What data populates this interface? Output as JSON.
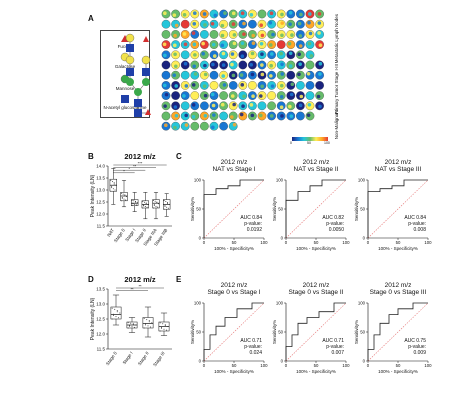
{
  "panels": {
    "A": "A",
    "B": "B",
    "C": "C",
    "D": "D",
    "E": "E"
  },
  "glycan_legend": {
    "items": [
      {
        "name": "Fucose",
        "shape": "red-triangle",
        "color": "#d32f2f"
      },
      {
        "name": "Galactose",
        "shape": "yellow-circle",
        "color": "#f2e24a"
      },
      {
        "name": "Mannose",
        "shape": "green-circle",
        "color": "#3aa84a"
      },
      {
        "name": "N-acetyl glucosamine",
        "shape": "blue-square",
        "color": "#1f3fa8"
      }
    ]
  },
  "tma": {
    "side_labels": [
      "Metastatic Lymph Nodes",
      "Primary Tumor Stage I-III",
      "Non-Malignant"
    ],
    "scale_ticks": [
      "0",
      "50",
      "100"
    ],
    "colormap": [
      "#1a237e",
      "#1976d2",
      "#26c6da",
      "#66bb6a",
      "#ffee58",
      "#ffa726",
      "#e53935"
    ]
  },
  "panel_B": {
    "title": "2012 m/z",
    "ylabel": "Peak Intensity (LN)",
    "sig_labels": [
      "***",
      "**",
      "*",
      "*"
    ],
    "chart_data": {
      "type": "box",
      "categories": [
        "NAT",
        "Stage 0",
        "Stage I",
        "Stage II",
        "Stage IIIA",
        "Stage IIIB"
      ],
      "ylim": [
        11.5,
        14.0
      ],
      "yticks": [
        "11.5",
        "12.0",
        "12.5",
        "13.0",
        "13.5",
        "14.0"
      ],
      "boxes": [
        {
          "min": 12.4,
          "q1": 12.95,
          "median": 13.2,
          "q3": 13.45,
          "max": 13.9
        },
        {
          "min": 12.3,
          "q1": 12.55,
          "median": 12.75,
          "q3": 12.9,
          "max": 13.4
        },
        {
          "min": 12.1,
          "q1": 12.35,
          "median": 12.45,
          "q3": 12.6,
          "max": 12.9
        },
        {
          "min": 11.8,
          "q1": 12.25,
          "median": 12.4,
          "q3": 12.55,
          "max": 12.9
        },
        {
          "min": 11.8,
          "q1": 12.25,
          "median": 12.45,
          "q3": 12.6,
          "max": 12.9
        },
        {
          "min": 11.9,
          "q1": 12.2,
          "median": 12.4,
          "q3": 12.6,
          "max": 12.85
        }
      ]
    }
  },
  "panel_C": {
    "ylabel": "Sensitivity%",
    "xlabel": "100% - Specificity%",
    "ticks": [
      "0",
      "50",
      "100"
    ],
    "chart_data": [
      {
        "type": "line",
        "title": "2012 m/z\nNAT vs Stage I",
        "auc": "AUC 0.84",
        "p_label": "p-value:",
        "p": "0.0192",
        "x": [
          0,
          0,
          20,
          20,
          40,
          40,
          60,
          60,
          100
        ],
        "y": [
          0,
          75,
          75,
          85,
          85,
          90,
          90,
          100,
          100
        ]
      },
      {
        "type": "line",
        "title": "2012 m/z\nNAT vs Stage II",
        "auc": "AUC 0.82",
        "p_label": "p-value:",
        "p": "0.0050",
        "x": [
          0,
          0,
          20,
          20,
          40,
          40,
          60,
          60,
          100
        ],
        "y": [
          0,
          65,
          65,
          80,
          80,
          90,
          90,
          100,
          100
        ]
      },
      {
        "type": "line",
        "title": "2012 m/z\nNAT vs Stage III",
        "auc": "AUC 0.84",
        "p_label": "p-value:",
        "p": "0.008",
        "x": [
          0,
          0,
          20,
          20,
          40,
          40,
          60,
          60,
          100
        ],
        "y": [
          0,
          80,
          80,
          85,
          85,
          90,
          90,
          100,
          100
        ]
      }
    ]
  },
  "panel_D": {
    "title": "2012 m/z",
    "ylabel": "Peak Intensity (LN)",
    "sig_labels": [
      "**",
      "**"
    ],
    "chart_data": {
      "type": "box",
      "categories": [
        "Stage 0",
        "Stage I",
        "Stage II",
        "Stage III"
      ],
      "ylim": [
        11.5,
        13.5
      ],
      "yticks": [
        "11.5",
        "12.0",
        "12.5",
        "13.0",
        "13.5"
      ],
      "boxes": [
        {
          "min": 12.3,
          "q1": 12.5,
          "median": 12.65,
          "q3": 12.9,
          "max": 13.3
        },
        {
          "min": 12.05,
          "q1": 12.2,
          "median": 12.3,
          "q3": 12.4,
          "max": 12.55
        },
        {
          "min": 11.9,
          "q1": 12.2,
          "median": 12.35,
          "q3": 12.55,
          "max": 12.9
        },
        {
          "min": 11.95,
          "q1": 12.1,
          "median": 12.25,
          "q3": 12.4,
          "max": 12.7
        }
      ]
    }
  },
  "panel_E": {
    "ylabel": "Sensitivity%",
    "xlabel": "100% - Specificity%",
    "ticks": [
      "0",
      "50",
      "100"
    ],
    "chart_data": [
      {
        "type": "line",
        "title": "2012 m/z\nStage 0 vs Stage I",
        "auc": "AUC 0.71",
        "p_label": "p-value:",
        "p": "0.024",
        "x": [
          0,
          0,
          10,
          10,
          20,
          20,
          35,
          35,
          55,
          55,
          80,
          80,
          100
        ],
        "y": [
          0,
          20,
          20,
          45,
          45,
          60,
          60,
          75,
          75,
          90,
          90,
          100,
          100
        ]
      },
      {
        "type": "line",
        "title": "2012 m/z\nStage 0 vs Stage II",
        "auc": "AUC 0.71",
        "p_label": "p-value:",
        "p": "0.007",
        "x": [
          0,
          0,
          10,
          10,
          20,
          20,
          35,
          35,
          55,
          55,
          80,
          80,
          100
        ],
        "y": [
          0,
          25,
          25,
          45,
          45,
          65,
          65,
          75,
          75,
          85,
          85,
          100,
          100
        ]
      },
      {
        "type": "line",
        "title": "2012 m/z\nStage 0 vs Stage III",
        "auc": "AUC 0.75",
        "p_label": "p-value:",
        "p": "0.009",
        "x": [
          0,
          0,
          10,
          10,
          20,
          20,
          35,
          35,
          50,
          50,
          75,
          75,
          100
        ],
        "y": [
          0,
          20,
          20,
          45,
          45,
          65,
          65,
          80,
          80,
          90,
          90,
          100,
          100
        ]
      }
    ]
  }
}
